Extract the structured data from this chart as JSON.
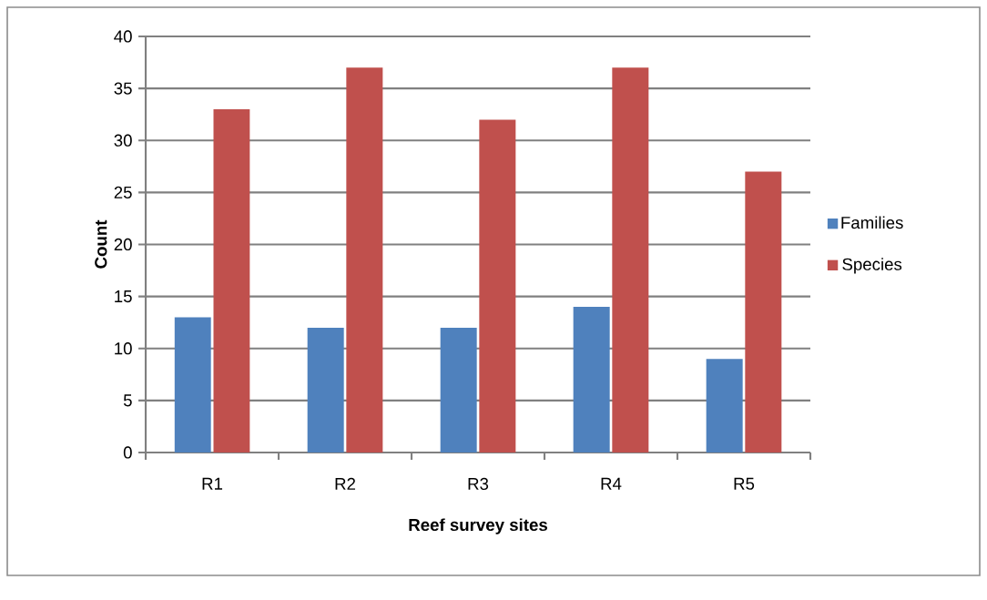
{
  "chart_data": {
    "type": "bar",
    "xlabel": "Reef survey sites",
    "ylabel": "Count",
    "categories": [
      "R1",
      "R2",
      "R3",
      "R4",
      "R5"
    ],
    "series": [
      {
        "name": "Families",
        "color": "#4f81bd",
        "values": [
          13,
          12,
          12,
          14,
          9
        ]
      },
      {
        "name": "Species",
        "color": "#c0504d",
        "values": [
          33,
          37,
          32,
          37,
          27
        ]
      }
    ],
    "ylim": [
      0,
      40
    ],
    "yticks": [
      0,
      5,
      10,
      15,
      20,
      25,
      30,
      35,
      40
    ],
    "grid": "y",
    "legend": "right"
  }
}
